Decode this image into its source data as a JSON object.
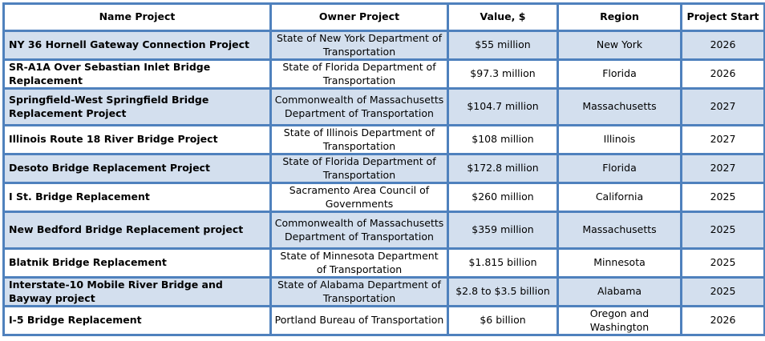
{
  "table": {
    "headers": [
      "Name Project",
      "Owner Project",
      "Value, $",
      "Region",
      "Project Start"
    ],
    "rows": [
      {
        "name": "NY 36 Hornell Gateway Connection Project",
        "owner": "State of New York Department of Transportation",
        "value": "$55 million",
        "region": "New York",
        "start": "2026"
      },
      {
        "name": "SR-A1A Over Sebastian Inlet Bridge Replacement",
        "owner": "State of Florida Department of Transportation",
        "value": "$97.3 million",
        "region": "Florida",
        "start": "2026"
      },
      {
        "name": "Springfield-West Springfield Bridge Replacement Project",
        "owner": "Commonwealth of Massachusetts Department of Transportation",
        "value": "$104.7 million",
        "region": "Massachusetts",
        "start": "2027"
      },
      {
        "name": "Illinois Route 18 River Bridge Project",
        "owner": "State of Illinois Department of Transportation",
        "value": "$108 million",
        "region": "Illinois",
        "start": "2027"
      },
      {
        "name": "Desoto Bridge Replacement Project",
        "owner": "State of Florida Department of Transportation",
        "value": "$172.8 million",
        "region": "Florida",
        "start": "2027"
      },
      {
        "name": "I St. Bridge Replacement",
        "owner": "Sacramento Area Council of Governments",
        "value": "$260 million",
        "region": "California",
        "start": "2025"
      },
      {
        "name": "New Bedford Bridge Replacement project",
        "owner": "Commonwealth of Massachusetts Department of Transportation",
        "value": "$359 million",
        "region": "Massachusetts",
        "start": "2025"
      },
      {
        "name": "Blatnik Bridge Replacement",
        "owner": "State of Minnesota Department of Transportation",
        "value": "$1.815 billion",
        "region": "Minnesota",
        "start": "2025"
      },
      {
        "name": "Interstate-10 Mobile River Bridge and Bayway project",
        "owner": "State of Alabama Department of Transportation",
        "value": "$2.8 to $3.5 billion",
        "region": "Alabama",
        "start": "2025"
      },
      {
        "name": "I-5 Bridge Replacement",
        "owner": "Portland Bureau of Transportation",
        "value": "$6 billion",
        "region": "Oregon and Washington",
        "start": "2026"
      }
    ]
  },
  "colors": {
    "border": "#4f81bd",
    "shaded_row": "#d3dfee"
  }
}
